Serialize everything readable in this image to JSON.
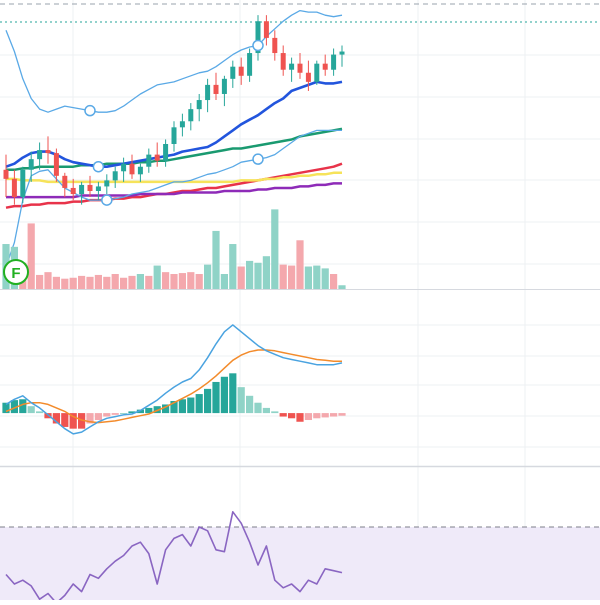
{
  "chart_data": [
    {
      "type": "candlestick",
      "panel": "price",
      "x": [
        0,
        1,
        2,
        3,
        4,
        5,
        6,
        7,
        8,
        9,
        10,
        11,
        12,
        13,
        14,
        15,
        16,
        17,
        18,
        19,
        20,
        21,
        22,
        23,
        24,
        25,
        26,
        27,
        28,
        29,
        30,
        31,
        32,
        33,
        34,
        35,
        36,
        37,
        38,
        39,
        40
      ],
      "ohlc": [
        [
          78,
          88,
          60,
          72
        ],
        [
          72,
          78,
          55,
          60
        ],
        [
          60,
          80,
          56,
          78
        ],
        [
          78,
          90,
          70,
          85
        ],
        [
          85,
          96,
          78,
          91
        ],
        [
          91,
          100,
          82,
          89
        ],
        [
          89,
          92,
          70,
          74
        ],
        [
          74,
          76,
          60,
          66
        ],
        [
          66,
          72,
          58,
          62
        ],
        [
          62,
          70,
          55,
          68
        ],
        [
          68,
          74,
          60,
          64
        ],
        [
          64,
          70,
          58,
          67
        ],
        [
          67,
          75,
          62,
          71
        ],
        [
          71,
          80,
          66,
          77
        ],
        [
          77,
          86,
          70,
          82
        ],
        [
          82,
          88,
          72,
          75
        ],
        [
          75,
          82,
          70,
          80
        ],
        [
          80,
          92,
          76,
          88
        ],
        [
          88,
          96,
          80,
          84
        ],
        [
          84,
          98,
          80,
          95
        ],
        [
          95,
          110,
          90,
          106
        ],
        [
          106,
          115,
          100,
          110
        ],
        [
          110,
          122,
          104,
          118
        ],
        [
          118,
          128,
          110,
          124
        ],
        [
          124,
          138,
          116,
          134
        ],
        [
          134,
          142,
          124,
          128
        ],
        [
          128,
          140,
          120,
          138
        ],
        [
          138,
          150,
          132,
          146
        ],
        [
          146,
          152,
          134,
          140
        ],
        [
          140,
          158,
          136,
          155
        ],
        [
          155,
          180,
          150,
          176
        ],
        [
          176,
          180,
          160,
          165
        ],
        [
          165,
          170,
          150,
          155
        ],
        [
          155,
          160,
          140,
          144
        ],
        [
          144,
          152,
          136,
          148
        ],
        [
          148,
          155,
          138,
          142
        ],
        [
          142,
          150,
          130,
          136
        ],
        [
          136,
          150,
          134,
          148
        ],
        [
          148,
          154,
          140,
          144
        ],
        [
          144,
          158,
          140,
          154
        ],
        [
          154,
          160,
          146,
          156
        ]
      ],
      "indicators": {
        "bb_upper": [
          170,
          156,
          138,
          125,
          118,
          116,
          118,
          120,
          119,
          118,
          117,
          116,
          116,
          117,
          120,
          124,
          128,
          131,
          134,
          135,
          136,
          138,
          140,
          142,
          143,
          146,
          150,
          154,
          157,
          159,
          160,
          166,
          171,
          176,
          180,
          183,
          182,
          182,
          180,
          179,
          180
        ],
        "bb_lower": [
          14,
          30,
          58,
          74,
          77,
          78,
          72,
          66,
          63,
          60,
          58,
          58,
          58,
          59,
          60,
          62,
          63,
          64,
          66,
          68,
          70,
          70,
          71,
          73,
          75,
          76,
          78,
          80,
          83,
          84,
          85,
          86,
          88,
          92,
          96,
          100,
          102,
          104,
          104,
          104,
          104
        ],
        "bb_mid": [
          80,
          82,
          86,
          89,
          90,
          90,
          88,
          85,
          83,
          82,
          81,
          80,
          80,
          81,
          82,
          83,
          84,
          85,
          86,
          87,
          88,
          90,
          91,
          92,
          93,
          96,
          100,
          104,
          108,
          111,
          114,
          118,
          122,
          125,
          130,
          132,
          134,
          136,
          135,
          135,
          136
        ],
        "ma_green": [
          78,
          78,
          79,
          79,
          80,
          80,
          80,
          80,
          80,
          81,
          81,
          81,
          82,
          82,
          82,
          82,
          83,
          83,
          84,
          84,
          85,
          86,
          87,
          88,
          89,
          90,
          91,
          92,
          92,
          93,
          94,
          95,
          96,
          97,
          98,
          100,
          101,
          102,
          103,
          104,
          105
        ],
        "ma_red": [
          53,
          54,
          54,
          55,
          55,
          56,
          56,
          56,
          57,
          57,
          58,
          58,
          58,
          59,
          59,
          60,
          60,
          61,
          62,
          62,
          63,
          64,
          64,
          65,
          66,
          66,
          67,
          68,
          69,
          70,
          71,
          72,
          73,
          74,
          75,
          76,
          77,
          78,
          79,
          80,
          82
        ],
        "ma_purple": [
          60,
          60,
          60,
          60,
          60,
          60,
          60,
          60,
          60,
          61,
          61,
          61,
          61,
          61,
          61,
          61,
          62,
          62,
          62,
          62,
          62,
          63,
          63,
          63,
          63,
          63,
          64,
          64,
          64,
          64,
          65,
          65,
          66,
          66,
          66,
          67,
          67,
          68,
          68,
          69,
          69
        ],
        "ma_yellow": [
          72,
          72,
          71,
          71,
          71,
          70,
          70,
          70,
          70,
          70,
          70,
          70,
          70,
          70,
          70,
          70,
          70,
          70,
          70,
          70,
          70,
          70,
          70,
          70,
          70,
          70,
          70,
          70,
          71,
          71,
          71,
          72,
          72,
          73,
          73,
          74,
          74,
          75,
          75,
          76,
          76
        ]
      },
      "ylim": [
        0,
        190
      ],
      "marker": "F"
    },
    {
      "type": "bar",
      "panel": "volume",
      "x": [
        0,
        1,
        2,
        3,
        4,
        5,
        6,
        7,
        8,
        9,
        10,
        11,
        12,
        13,
        14,
        15,
        16,
        17,
        18,
        19,
        20,
        21,
        22,
        23,
        24,
        25,
        26,
        27,
        28,
        29,
        30,
        31,
        32,
        33,
        34,
        35,
        36,
        37,
        38,
        39,
        40
      ],
      "values": [
        48,
        45,
        28,
        70,
        15,
        18,
        13,
        11,
        12,
        14,
        13,
        15,
        13,
        16,
        12,
        14,
        16,
        14,
        25,
        18,
        16,
        17,
        18,
        16,
        26,
        62,
        16,
        48,
        24,
        30,
        28,
        35,
        85,
        26,
        25,
        52,
        24,
        25,
        22,
        16,
        4
      ],
      "up": [
        true,
        true,
        false,
        false,
        false,
        false,
        false,
        false,
        false,
        false,
        false,
        false,
        false,
        false,
        false,
        false,
        true,
        false,
        true,
        false,
        false,
        false,
        false,
        false,
        true,
        true,
        true,
        true,
        false,
        true,
        true,
        true,
        true,
        false,
        false,
        false,
        true,
        true,
        true,
        false,
        true
      ],
      "ylim": [
        0,
        95
      ]
    },
    {
      "type": "macd",
      "panel": "macd",
      "x": [
        0,
        1,
        2,
        3,
        4,
        5,
        6,
        7,
        8,
        9,
        10,
        11,
        12,
        13,
        14,
        15,
        16,
        17,
        18,
        19,
        20,
        21,
        22,
        23,
        24,
        25,
        26,
        27,
        28,
        29,
        30,
        31,
        32,
        33,
        34,
        35,
        36,
        37,
        38,
        39,
        40
      ],
      "macd": [
        1.0,
        1.6,
        2.0,
        1.2,
        0.6,
        -0.2,
        -1.0,
        -1.8,
        -2.4,
        -2.2,
        -1.6,
        -1.0,
        -0.6,
        -0.4,
        -0.2,
        -0.1,
        0.3,
        0.9,
        1.5,
        2.3,
        3.0,
        3.6,
        4.0,
        5.0,
        6.4,
        8.0,
        9.4,
        10.2,
        9.4,
        8.6,
        7.8,
        7.2,
        6.8,
        6.4,
        6.2,
        6.0,
        5.8,
        5.6,
        5.6,
        5.6,
        5.8
      ],
      "signal": [
        0.2,
        0.6,
        1.0,
        1.2,
        1.2,
        1.0,
        0.6,
        0.2,
        -0.4,
        -0.8,
        -1.0,
        -1.1,
        -1.0,
        -0.9,
        -0.7,
        -0.5,
        -0.3,
        -0.1,
        0.3,
        0.7,
        1.2,
        1.7,
        2.2,
        2.8,
        3.5,
        4.3,
        5.2,
        6.1,
        6.7,
        7.1,
        7.3,
        7.3,
        7.2,
        7.0,
        6.8,
        6.6,
        6.4,
        6.2,
        6.1,
        6.0,
        6.0
      ],
      "histogram": [
        1.2,
        1.5,
        1.6,
        0.8,
        0.2,
        -0.6,
        -1.2,
        -1.6,
        -1.8,
        -1.8,
        -1.2,
        -0.8,
        -0.4,
        -0.2,
        0.0,
        0.2,
        0.4,
        0.6,
        0.8,
        1.0,
        1.4,
        1.6,
        1.8,
        2.2,
        2.8,
        3.6,
        4.2,
        4.6,
        3.0,
        2.0,
        1.2,
        0.6,
        0.2,
        -0.4,
        -0.6,
        -1.0,
        -0.8,
        -0.6,
        -0.5,
        -0.4,
        -0.3
      ],
      "ylim": [
        -6,
        14
      ]
    },
    {
      "type": "line",
      "panel": "rsi",
      "x": [
        0,
        1,
        2,
        3,
        4,
        5,
        6,
        7,
        8,
        9,
        10,
        11,
        12,
        13,
        14,
        15,
        16,
        17,
        18,
        19,
        20,
        21,
        22,
        23,
        24,
        25,
        26,
        27,
        28,
        29,
        30,
        31,
        32,
        33,
        34,
        35,
        36,
        37,
        38,
        39,
        40
      ],
      "values": [
        45,
        40,
        42,
        39,
        32,
        35,
        30,
        34,
        40,
        36,
        45,
        43,
        48,
        52,
        55,
        60,
        62,
        56,
        40,
        58,
        64,
        66,
        60,
        70,
        68,
        58,
        57,
        78,
        72,
        62,
        50,
        60,
        42,
        38,
        40,
        36,
        42,
        40,
        48,
        47,
        46
      ],
      "ylim": [
        0,
        100
      ],
      "bands": [
        30,
        70
      ]
    }
  ],
  "colors": {
    "up": "#26a69a",
    "up_light": "#8fd3c7",
    "down": "#ef5350",
    "down_light": "#f4a8ad",
    "bb": "#5aa9e6",
    "mid": "#2255dd",
    "ma_green": "#1a9a70",
    "ma_red": "#e8334a",
    "ma_purple": "#8e2bb8",
    "ma_yellow": "#f6e35a",
    "macd": "#4aa3e0",
    "signal": "#f38b2b",
    "rsi": "#8a66c2",
    "rsi_band": "#efeaf9",
    "marker": "#21b021"
  }
}
